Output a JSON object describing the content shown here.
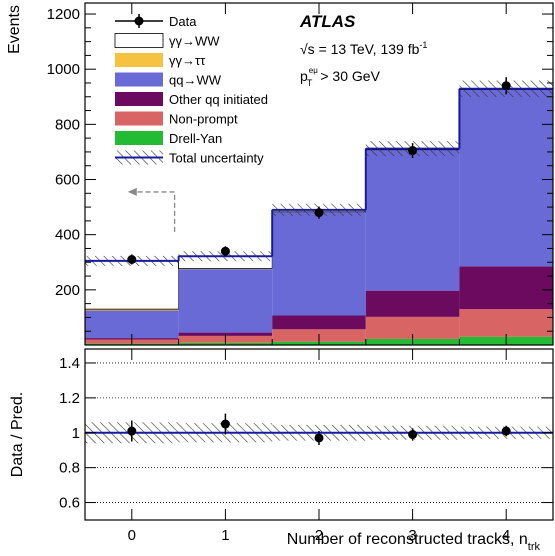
{
  "chart_data": [
    {
      "type": "bar",
      "stacked": true,
      "ylabel": "Events",
      "xlabel": "Number of reconstructed tracks, n",
      "xlabel_sub": "trk",
      "categories": [
        "0",
        "1",
        "2",
        "3",
        "4"
      ],
      "ylim": [
        0,
        1240
      ],
      "yticks": [
        200,
        400,
        600,
        800,
        1000,
        1200
      ],
      "series": [
        {
          "name": "Drell-Yan",
          "color": "#22bb33",
          "values": [
            5,
            8,
            12,
            22,
            30
          ]
        },
        {
          "name": "Non-prompt",
          "color": "#d86464",
          "values": [
            15,
            25,
            45,
            80,
            100
          ]
        },
        {
          "name": "Other qq initiated",
          "color": "#6b0a5e",
          "values": [
            5,
            12,
            50,
            95,
            155
          ]
        },
        {
          "name": "qq→WW",
          "color": "#6a6ad6",
          "values": [
            100,
            230,
            375,
            510,
            640
          ]
        },
        {
          "name": "γγ→ττ",
          "color": "#f5c242",
          "values": [
            5,
            2,
            1,
            1,
            1
          ]
        },
        {
          "name": "γγ→WW",
          "color": "#ffffff",
          "values": [
            175,
            45,
            7,
            4,
            3
          ]
        }
      ],
      "data_points": {
        "name": "Data",
        "values": [
          310,
          340,
          480,
          705,
          940
        ],
        "errors": [
          18,
          18,
          22,
          27,
          31
        ]
      },
      "total_uncertainty": {
        "name": "Total uncertainty",
        "color": "#1a1aa0",
        "totals": [
          305,
          322,
          490,
          712,
          929
        ],
        "band": [
          18,
          18,
          22,
          27,
          30
        ]
      },
      "legend": [
        "Data",
        "γγ→WW",
        "γγ→ττ",
        "qq→WW",
        "Other qq initiated",
        "Non-prompt",
        "Drell-Yan",
        "Total uncertainty"
      ],
      "legend_position": "top-left",
      "annotations": {
        "experiment": "ATLAS",
        "energy": "√s = 13 TeV, 139 fb",
        "energy_sup": "-1",
        "cut_p": "p",
        "cut_sup": "eμ",
        "cut_sub": "T",
        "cut_rest": "> 30 GeV"
      },
      "signal_region_arrow": {
        "direction": "left",
        "x_from": 0.5,
        "x_to": 0.0
      }
    },
    {
      "type": "scatter",
      "ylabel": "Data / Pred.",
      "xlabel": "Number of reconstructed tracks, n",
      "categories": [
        "0",
        "1",
        "2",
        "3",
        "4"
      ],
      "ylim": [
        0.5,
        1.48
      ],
      "yticks": [
        0.6,
        0.8,
        1.0,
        1.2,
        1.4
      ],
      "ytick_labels": [
        "0.6",
        "0.8",
        "1",
        "1.2",
        "1.4"
      ],
      "grid_lines": [
        0.6,
        0.8,
        1.0,
        1.2,
        1.4
      ],
      "values": [
        1.01,
        1.05,
        0.97,
        0.99,
        1.01
      ],
      "errors": [
        0.06,
        0.06,
        0.04,
        0.035,
        0.03
      ],
      "uncertainty_band": [
        0.06,
        0.055,
        0.045,
        0.04,
        0.035
      ]
    }
  ]
}
